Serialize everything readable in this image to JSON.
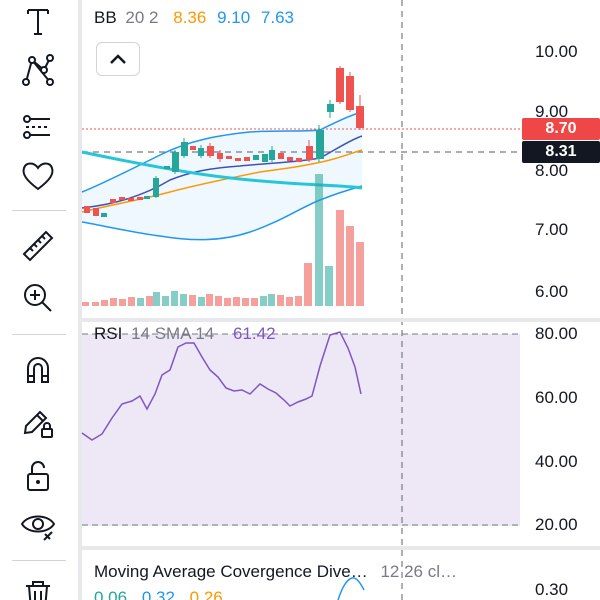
{
  "toolbar": {
    "tools": [
      {
        "name": "text-tool-icon"
      },
      {
        "name": "pattern-tool-icon"
      },
      {
        "name": "trend-lines-icon"
      },
      {
        "name": "favorites-heart-icon"
      },
      {
        "name": "ruler-measure-icon"
      },
      {
        "name": "zoom-in-icon"
      },
      {
        "name": "magnet-mode-icon"
      },
      {
        "name": "draw-lock-icon"
      },
      {
        "name": "lock-drawings-icon"
      },
      {
        "name": "hide-drawings-eye-icon"
      },
      {
        "name": "delete-trash-icon"
      }
    ]
  },
  "bb_legend": {
    "name": "BB",
    "params": "20 2",
    "basis": "8.36",
    "upper": "9.10",
    "lower": "7.63"
  },
  "price_axis": {
    "ticks": [
      "10.00",
      "9.00",
      "8.00",
      "7.00",
      "6.00"
    ],
    "last_price": "8.70",
    "crosshair_price": "8.31"
  },
  "rsi_legend": {
    "name": "RSI",
    "params": "14 SMA 14",
    "value": "61.42"
  },
  "rsi_axis": {
    "ticks": [
      "80.00",
      "60.00",
      "40.00",
      "20.00"
    ]
  },
  "macd_legend": {
    "name": "Moving Average Covergence Dive…",
    "params": "12 26 cl…",
    "values": [
      "0.06",
      "0.32",
      "0.26"
    ]
  },
  "macd_axis": {
    "ticks": [
      "0.30"
    ]
  },
  "colors": {
    "up": "#26a69a",
    "down": "#ef5350",
    "bb_basis": "#ff9800",
    "bb_upper": "#2196f3",
    "rsi_line": "#7e57c2",
    "rsi_band": "#ede7f6",
    "last_price_tag": "#ef4747",
    "crosshair_tag": "#131722",
    "legend_value_purple": "#7e57c2"
  }
}
